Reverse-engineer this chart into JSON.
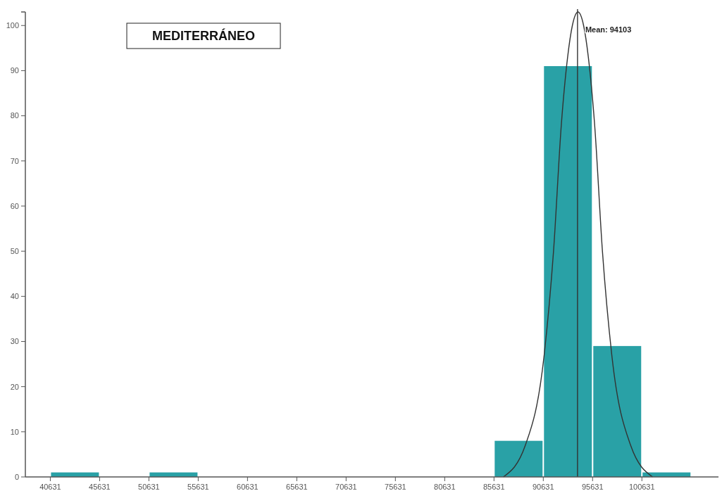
{
  "chart_data": {
    "type": "histogram",
    "title": "MEDITERRÁNEO",
    "bins": [
      40631,
      45631,
      50631,
      55631,
      60631,
      65631,
      70631,
      75631,
      80631,
      85631,
      90631,
      95631,
      100631,
      105631
    ],
    "series": [
      {
        "color": "#29a1a6",
        "values": [
          1,
          0,
          1,
          0,
          0,
          0,
          0,
          0,
          0,
          8,
          91,
          29,
          1
        ]
      },
      {
        "type": "line",
        "color": "#333333",
        "x": [
          86580,
          88810,
          90720,
          91670,
          92460,
          93100,
          93580,
          94150,
          94720,
          95200,
          95840,
          96630,
          97580,
          99490,
          101720
        ],
        "values": [
          0,
          7,
          27,
          50,
          78,
          93,
          100,
          103,
          100,
          93,
          78,
          50,
          27,
          7,
          0
        ]
      }
    ],
    "ref_lines": [
      {
        "axis": "x",
        "value": 94103,
        "label": "Mean: 94103",
        "color": "#333333"
      }
    ],
    "xlim": [
      38100,
      108400
    ],
    "ylim": [
      0,
      103
    ],
    "xticks": [
      40631,
      45631,
      50631,
      55631,
      60631,
      65631,
      70631,
      75631,
      80631,
      85631,
      90631,
      95631,
      100631
    ],
    "yticks": [
      0,
      10,
      20,
      30,
      40,
      50,
      60,
      70,
      80,
      90,
      100
    ],
    "grid": false,
    "marker": "none",
    "line_style": "solid"
  }
}
